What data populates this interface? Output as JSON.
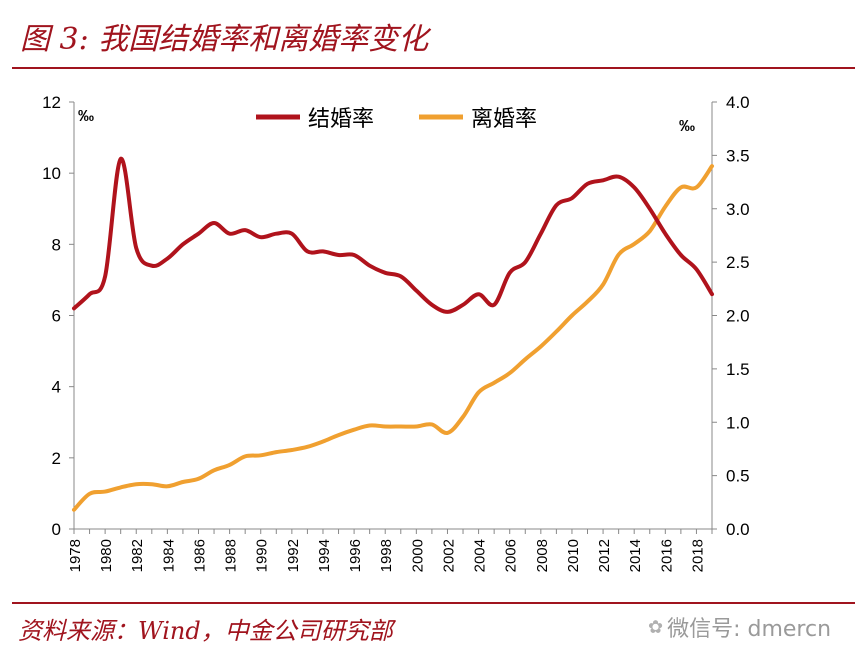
{
  "title": "图 3:  我国结婚率和离婚率变化",
  "source": "资料来源：Wind，中金公司研究部",
  "watermark": {
    "icon": "wechat-icon",
    "text": "微信号: dmercn"
  },
  "colors": {
    "marriage": "#b0131c",
    "divorce": "#f0a030",
    "accent": "#a0141e"
  },
  "chart_data": {
    "type": "line",
    "title": "我国结婚率和离婚率变化",
    "x": [
      1978,
      1979,
      1980,
      1981,
      1982,
      1983,
      1984,
      1985,
      1986,
      1987,
      1988,
      1989,
      1990,
      1991,
      1992,
      1993,
      1994,
      1995,
      1996,
      1997,
      1998,
      1999,
      2000,
      2001,
      2002,
      2003,
      2004,
      2005,
      2006,
      2007,
      2008,
      2009,
      2010,
      2011,
      2012,
      2013,
      2014,
      2015,
      2016,
      2017,
      2018,
      2019
    ],
    "xticks": [
      "1978",
      "1980",
      "1982",
      "1984",
      "1986",
      "1988",
      "1990",
      "1992",
      "1994",
      "1996",
      "1998",
      "2000",
      "2002",
      "2004",
      "2006",
      "2008",
      "2010",
      "2012",
      "2014",
      "2016",
      "2018"
    ],
    "left_axis": {
      "unit": "‰",
      "ylim": [
        0,
        12
      ],
      "ticks": [
        "0",
        "2",
        "4",
        "6",
        "8",
        "10",
        "12"
      ]
    },
    "right_axis": {
      "unit": "‰",
      "ylim": [
        0,
        4
      ],
      "ticks": [
        "0.0",
        "0.5",
        "1.0",
        "1.5",
        "2.0",
        "2.5",
        "3.0",
        "3.5",
        "4.0"
      ]
    },
    "legend": {
      "position": "top-center"
    },
    "series": [
      {
        "name": "结婚率",
        "axis": "left",
        "color": "#b0131c",
        "values": [
          6.2,
          6.6,
          7.1,
          10.4,
          7.9,
          7.4,
          7.6,
          8.0,
          8.3,
          8.6,
          8.3,
          8.4,
          8.2,
          8.3,
          8.3,
          7.8,
          7.8,
          7.7,
          7.7,
          7.4,
          7.2,
          7.1,
          6.7,
          6.3,
          6.1,
          6.3,
          6.6,
          6.3,
          7.2,
          7.5,
          8.3,
          9.1,
          9.3,
          9.7,
          9.8,
          9.9,
          9.6,
          9.0,
          8.3,
          7.7,
          7.3,
          6.6
        ]
      },
      {
        "name": "离婚率",
        "axis": "right",
        "color": "#f0a030",
        "values": [
          0.18,
          0.33,
          0.35,
          0.39,
          0.42,
          0.42,
          0.4,
          0.44,
          0.47,
          0.55,
          0.6,
          0.68,
          0.69,
          0.72,
          0.74,
          0.77,
          0.82,
          0.88,
          0.93,
          0.97,
          0.96,
          0.96,
          0.96,
          0.98,
          0.9,
          1.05,
          1.28,
          1.37,
          1.46,
          1.59,
          1.71,
          1.85,
          2.0,
          2.13,
          2.29,
          2.57,
          2.67,
          2.79,
          3.02,
          3.2,
          3.2,
          3.4
        ]
      }
    ]
  }
}
